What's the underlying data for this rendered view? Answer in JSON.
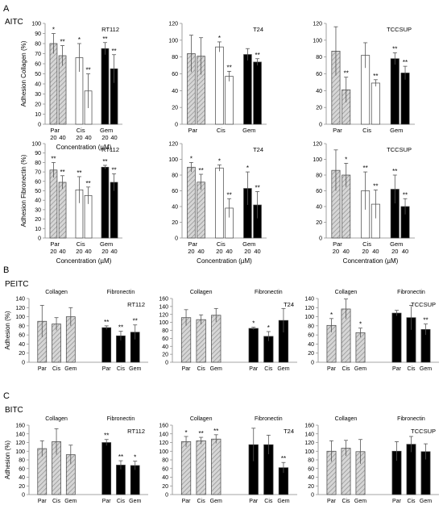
{
  "sections": [
    {
      "id": "A",
      "letter": "A",
      "title": "AITC"
    },
    {
      "id": "B",
      "letter": "B",
      "title": "PEITC"
    },
    {
      "id": "C",
      "letter": "C",
      "title": "BITC"
    }
  ],
  "colors": {
    "par": "#d2d2d2",
    "cis": "#ffffff",
    "gem": "#000000",
    "edge": "#555555",
    "hatch": "#8a8a8a"
  },
  "chart_data": [
    {
      "id": "A-collagen-RT112",
      "type": "bar",
      "layout": "conc",
      "ylabel": "Adhesion Collagen (%)",
      "cell_line": "RT112",
      "xlabel": "Concentration (µM)",
      "ylim": [
        0,
        100
      ],
      "yticks": [
        0,
        10,
        20,
        30,
        40,
        50,
        60,
        70,
        80,
        90,
        100
      ],
      "groups": [
        "Par",
        "Cis",
        "Gem"
      ],
      "conc_labels": [
        "20",
        "40"
      ],
      "bars": [
        {
          "group": "Par",
          "conc": "20",
          "value": 80,
          "err": 10,
          "sig": "*"
        },
        {
          "group": "Par",
          "conc": "40",
          "value": 68,
          "err": 10,
          "sig": "**"
        },
        {
          "group": "Cis",
          "conc": "20",
          "value": 66,
          "err": 14,
          "sig": "*"
        },
        {
          "group": "Cis",
          "conc": "40",
          "value": 33,
          "err": 17,
          "sig": "**"
        },
        {
          "group": "Gem",
          "conc": "20",
          "value": 75,
          "err": 6,
          "sig": "**"
        },
        {
          "group": "Gem",
          "conc": "40",
          "value": 55,
          "err": 14,
          "sig": "**"
        }
      ]
    },
    {
      "id": "A-collagen-T24",
      "type": "bar",
      "layout": "conc",
      "ylabel": "",
      "cell_line": "T24",
      "xlabel": "",
      "ylim": [
        0,
        120
      ],
      "yticks": [
        0,
        20,
        40,
        60,
        80,
        100,
        120
      ],
      "groups": [
        "Par",
        "Cis",
        "Gem"
      ],
      "conc_labels": [],
      "bars": [
        {
          "group": "Par",
          "conc": "20",
          "value": 84,
          "err": 22,
          "sig": ""
        },
        {
          "group": "Par",
          "conc": "40",
          "value": 81,
          "err": 22,
          "sig": ""
        },
        {
          "group": "Cis",
          "conc": "20",
          "value": 92,
          "err": 6,
          "sig": "*"
        },
        {
          "group": "Cis",
          "conc": "40",
          "value": 57,
          "err": 6,
          "sig": "**"
        },
        {
          "group": "Gem",
          "conc": "20",
          "value": 83,
          "err": 7,
          "sig": ""
        },
        {
          "group": "Gem",
          "conc": "40",
          "value": 74,
          "err": 4,
          "sig": "**"
        }
      ]
    },
    {
      "id": "A-collagen-TCCSUP",
      "type": "bar",
      "layout": "conc",
      "ylabel": "",
      "cell_line": "TCCSUP",
      "xlabel": "",
      "ylim": [
        0,
        120
      ],
      "yticks": [
        0,
        20,
        40,
        60,
        80,
        100,
        120
      ],
      "groups": [
        "Par",
        "Cis",
        "Gem"
      ],
      "conc_labels": [],
      "bars": [
        {
          "group": "Par",
          "conc": "20",
          "value": 87,
          "err": 29,
          "sig": ""
        },
        {
          "group": "Par",
          "conc": "40",
          "value": 41,
          "err": 15,
          "sig": "**"
        },
        {
          "group": "Cis",
          "conc": "20",
          "value": 82,
          "err": 15,
          "sig": ""
        },
        {
          "group": "Cis",
          "conc": "40",
          "value": 49,
          "err": 4,
          "sig": "**"
        },
        {
          "group": "Gem",
          "conc": "20",
          "value": 78,
          "err": 7,
          "sig": "**"
        },
        {
          "group": "Gem",
          "conc": "40",
          "value": 61,
          "err": 8,
          "sig": "**"
        }
      ]
    },
    {
      "id": "A-fibronectin-RT112",
      "type": "bar",
      "layout": "conc",
      "ylabel": "Adhesion Fibronectin (%)",
      "cell_line": "RT112",
      "xlabel": "Concentration (µM)",
      "ylim": [
        0,
        100
      ],
      "yticks": [
        0,
        10,
        20,
        30,
        40,
        50,
        60,
        70,
        80,
        90,
        100
      ],
      "groups": [
        "Par",
        "Cis",
        "Gem"
      ],
      "conc_labels": [
        "20",
        "40"
      ],
      "bars": [
        {
          "group": "Par",
          "conc": "20",
          "value": 72,
          "err": 8,
          "sig": "**"
        },
        {
          "group": "Par",
          "conc": "40",
          "value": 59,
          "err": 7,
          "sig": "**"
        },
        {
          "group": "Cis",
          "conc": "20",
          "value": 51,
          "err": 14,
          "sig": "**"
        },
        {
          "group": "Cis",
          "conc": "40",
          "value": 45,
          "err": 9,
          "sig": "**"
        },
        {
          "group": "Gem",
          "conc": "20",
          "value": 75,
          "err": 2,
          "sig": "**"
        },
        {
          "group": "Gem",
          "conc": "40",
          "value": 59,
          "err": 9,
          "sig": "**"
        }
      ]
    },
    {
      "id": "A-fibronectin-T24",
      "type": "bar",
      "layout": "conc",
      "ylabel": "",
      "cell_line": "T24",
      "xlabel": "Concentration (µM)",
      "ylim": [
        0,
        120
      ],
      "yticks": [
        0,
        20,
        40,
        60,
        80,
        100,
        120
      ],
      "groups": [
        "Par",
        "Cis",
        "Gem"
      ],
      "conc_labels": [
        "20",
        "40"
      ],
      "bars": [
        {
          "group": "Par",
          "conc": "20",
          "value": 90,
          "err": 6,
          "sig": "*"
        },
        {
          "group": "Par",
          "conc": "40",
          "value": 71,
          "err": 10,
          "sig": "**"
        },
        {
          "group": "Cis",
          "conc": "20",
          "value": 89,
          "err": 4,
          "sig": "*"
        },
        {
          "group": "Cis",
          "conc": "40",
          "value": 38,
          "err": 12,
          "sig": "**"
        },
        {
          "group": "Gem",
          "conc": "20",
          "value": 63,
          "err": 21,
          "sig": "*"
        },
        {
          "group": "Gem",
          "conc": "40",
          "value": 42,
          "err": 17,
          "sig": "**"
        }
      ]
    },
    {
      "id": "A-fibronectin-TCCSUP",
      "type": "bar",
      "layout": "conc",
      "ylabel": "",
      "cell_line": "TCCSUP",
      "xlabel": "Concentration (µM)",
      "ylim": [
        0,
        120
      ],
      "yticks": [
        0,
        20,
        40,
        60,
        80,
        100,
        120
      ],
      "groups": [
        "Par",
        "Cis",
        "Gem"
      ],
      "conc_labels": [
        "20",
        "40"
      ],
      "bars": [
        {
          "group": "Par",
          "conc": "20",
          "value": 86,
          "err": 26,
          "sig": ""
        },
        {
          "group": "Par",
          "conc": "40",
          "value": 80,
          "err": 15,
          "sig": "*"
        },
        {
          "group": "Cis",
          "conc": "20",
          "value": 60,
          "err": 24,
          "sig": "**"
        },
        {
          "group": "Cis",
          "conc": "40",
          "value": 43,
          "err": 18,
          "sig": "**"
        },
        {
          "group": "Gem",
          "conc": "20",
          "value": 62,
          "err": 18,
          "sig": "**"
        },
        {
          "group": "Gem",
          "conc": "40",
          "value": 40,
          "err": 10,
          "sig": "**"
        }
      ]
    },
    {
      "id": "B-RT112",
      "type": "bar",
      "layout": "matrix",
      "ylabel": "Adhesion (%)",
      "cell_line": "RT112",
      "matrix_labels": [
        "Collagen",
        "Fibronectin"
      ],
      "ylim": [
        0,
        140
      ],
      "yticks": [
        0,
        20,
        40,
        60,
        80,
        100,
        120,
        140
      ],
      "categories": [
        "Par",
        "Cis",
        "Gem"
      ],
      "series": [
        {
          "name": "Collagen",
          "values": [
            90,
            84,
            100
          ],
          "errors": [
            35,
            14,
            20
          ],
          "sig": [
            "",
            "",
            ""
          ]
        },
        {
          "name": "Fibronectin",
          "values": [
            76,
            58,
            66
          ],
          "errors": [
            4,
            10,
            16
          ],
          "sig": [
            "**",
            "**",
            "**"
          ]
        }
      ]
    },
    {
      "id": "B-T24",
      "type": "bar",
      "layout": "matrix",
      "ylabel": "",
      "cell_line": "T24",
      "matrix_labels": [
        "Collagen",
        "Fibronectin"
      ],
      "ylim": [
        0,
        160
      ],
      "yticks": [
        0,
        20,
        40,
        60,
        80,
        100,
        120,
        140,
        160
      ],
      "categories": [
        "Par",
        "Cis",
        "Gem"
      ],
      "series": [
        {
          "name": "Collagen",
          "values": [
            112,
            107,
            118
          ],
          "errors": [
            20,
            12,
            17
          ],
          "sig": [
            "",
            "",
            ""
          ]
        },
        {
          "name": "Fibronectin",
          "values": [
            85,
            65,
            105
          ],
          "errors": [
            3,
            12,
            30
          ],
          "sig": [
            "*",
            "*",
            ""
          ]
        }
      ]
    },
    {
      "id": "B-TCCSUP",
      "type": "bar",
      "layout": "matrix",
      "ylabel": "",
      "cell_line": "TCCSUP",
      "matrix_labels": [
        "Collagen",
        "Fibronectin"
      ],
      "ylim": [
        0,
        140
      ],
      "yticks": [
        0,
        20,
        40,
        60,
        80,
        100,
        120,
        140
      ],
      "categories": [
        "Par",
        "Cis",
        "Gem"
      ],
      "series": [
        {
          "name": "Collagen",
          "values": [
            81,
            117,
            65
          ],
          "errors": [
            15,
            22,
            10
          ],
          "sig": [
            "*",
            "",
            "*"
          ]
        },
        {
          "name": "Fibronectin",
          "values": [
            108,
            98,
            72
          ],
          "errors": [
            6,
            27,
            12
          ],
          "sig": [
            "",
            "",
            "**"
          ]
        }
      ]
    },
    {
      "id": "C-RT112",
      "type": "bar",
      "layout": "matrix",
      "ylabel": "Adhesion (%)",
      "cell_line": "RT112",
      "matrix_labels": [
        "Collagen",
        "Fibronectin"
      ],
      "ylim": [
        0,
        160
      ],
      "yticks": [
        0,
        20,
        40,
        60,
        80,
        100,
        120,
        140,
        160
      ],
      "categories": [
        "Par",
        "Cis",
        "Gem"
      ],
      "series": [
        {
          "name": "Collagen",
          "values": [
            106,
            122,
            92
          ],
          "errors": [
            18,
            30,
            22
          ],
          "sig": [
            "",
            "",
            ""
          ]
        },
        {
          "name": "Fibronectin",
          "values": [
            120,
            68,
            67
          ],
          "errors": [
            7,
            10,
            10
          ],
          "sig": [
            "**",
            "**",
            "*"
          ]
        }
      ]
    },
    {
      "id": "C-T24",
      "type": "bar",
      "layout": "matrix",
      "ylabel": "",
      "cell_line": "T24",
      "matrix_labels": [
        "Collagen",
        "Fibronectin"
      ],
      "ylim": [
        0,
        160
      ],
      "yticks": [
        0,
        20,
        40,
        60,
        80,
        100,
        120,
        140,
        160
      ],
      "categories": [
        "Par",
        "Cis",
        "Gem"
      ],
      "series": [
        {
          "name": "Collagen",
          "values": [
            122,
            124,
            128
          ],
          "errors": [
            12,
            8,
            10
          ],
          "sig": [
            "*",
            "**",
            "**"
          ]
        },
        {
          "name": "Fibronectin",
          "values": [
            115,
            115,
            62
          ],
          "errors": [
            38,
            22,
            12
          ],
          "sig": [
            "",
            "",
            "**"
          ]
        }
      ]
    },
    {
      "id": "C-TCCSUP",
      "type": "bar",
      "layout": "matrix",
      "ylabel": "",
      "cell_line": "TCCSUP",
      "matrix_labels": [
        "Collagen",
        "Fibronectin"
      ],
      "ylim": [
        0,
        160
      ],
      "yticks": [
        0,
        20,
        40,
        60,
        80,
        100,
        120,
        140,
        160
      ],
      "categories": [
        "Par",
        "Cis",
        "Gem"
      ],
      "series": [
        {
          "name": "Collagen",
          "values": [
            100,
            107,
            99
          ],
          "errors": [
            24,
            18,
            28
          ],
          "sig": [
            "",
            "",
            ""
          ]
        },
        {
          "name": "Fibronectin",
          "values": [
            100,
            116,
            99
          ],
          "errors": [
            22,
            18,
            18
          ],
          "sig": [
            "",
            "",
            ""
          ]
        }
      ]
    }
  ]
}
